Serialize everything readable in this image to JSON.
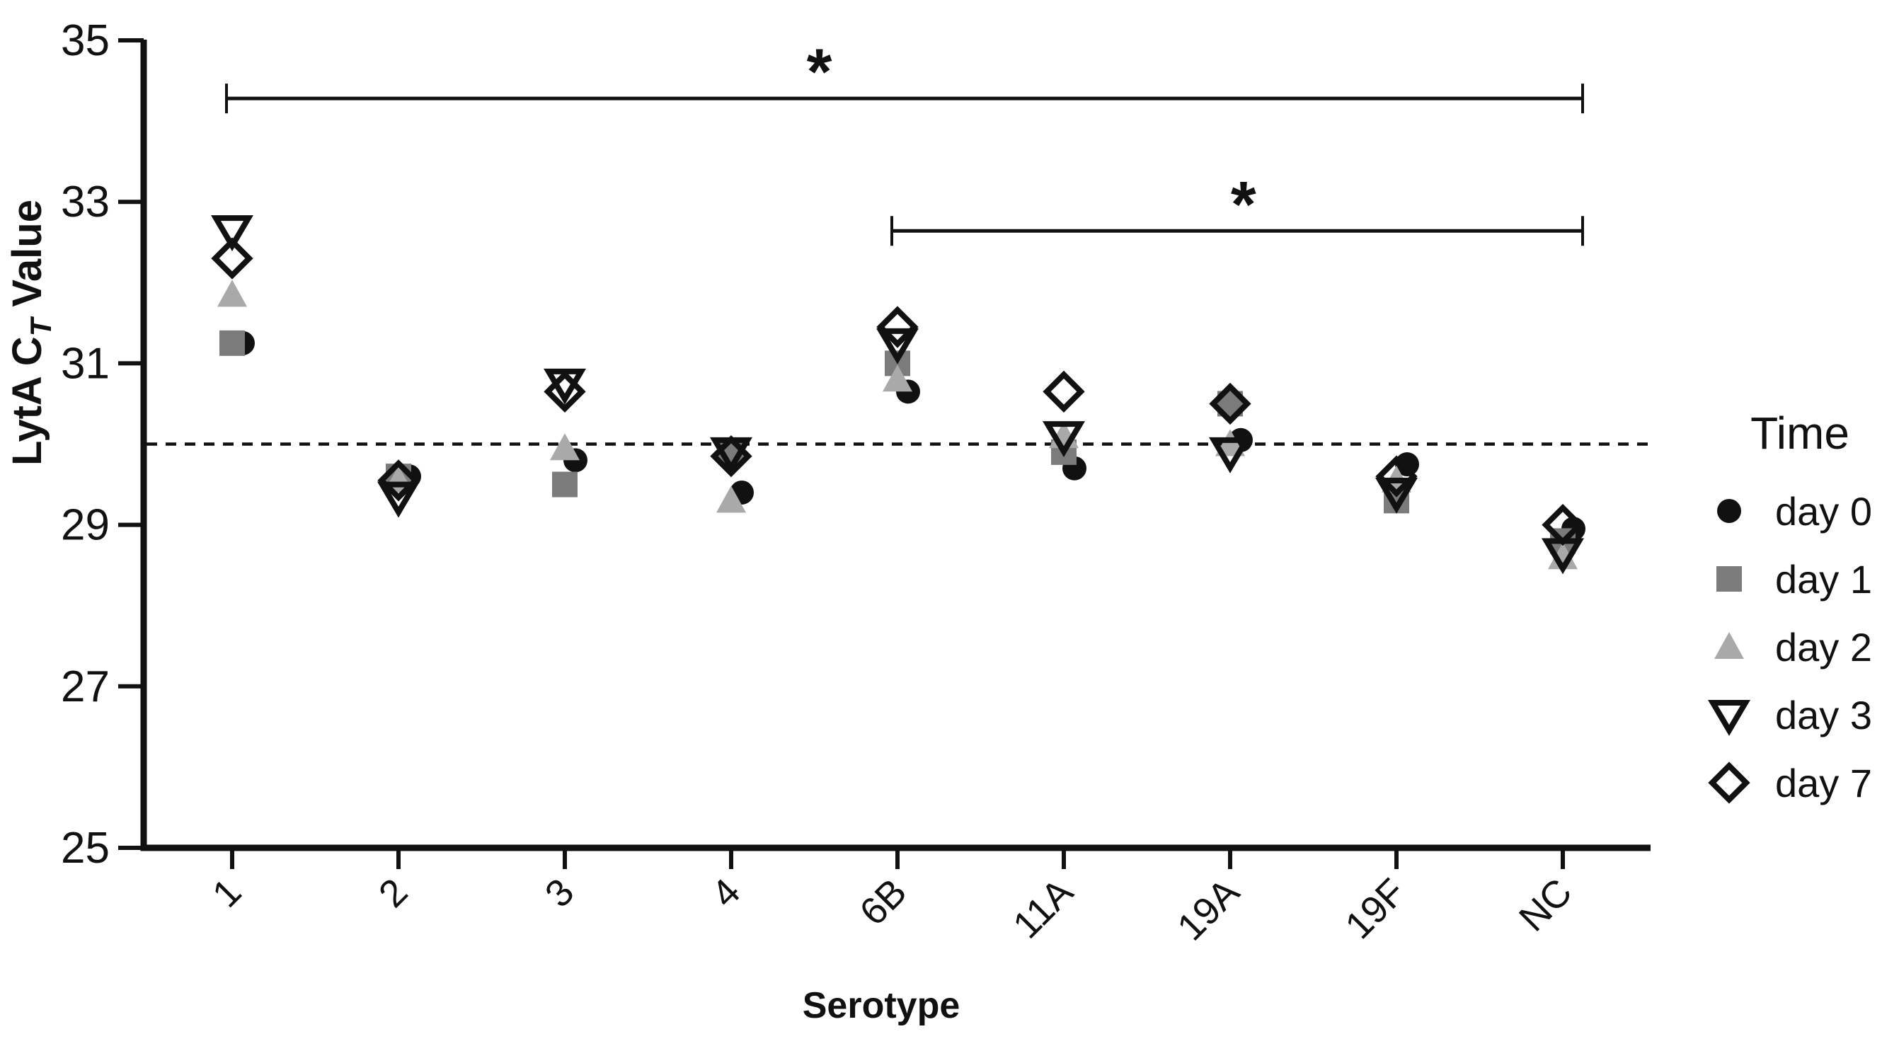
{
  "chart_data": {
    "type": "scatter",
    "title": "",
    "xlabel": "Serotype",
    "ylabel": "LytA CT Value",
    "ylabel_parts": {
      "prefix": "LytA C",
      "sub": "T",
      "suffix": " Value"
    },
    "categories": [
      "1",
      "2",
      "3",
      "4",
      "6B",
      "11A",
      "19A",
      "19F",
      "NC"
    ],
    "yticks": [
      35,
      33,
      31,
      29,
      27,
      25
    ],
    "ylim": [
      25,
      35
    ],
    "grid": "off",
    "reference_line": {
      "y": 30,
      "style": "dashed",
      "color": "#111111"
    },
    "legend": {
      "title": "Time",
      "position": "right"
    },
    "series": [
      {
        "name": "day 0",
        "marker": "circle",
        "style": "filled",
        "color": "#111111",
        "values": [
          31.25,
          29.6,
          29.8,
          29.4,
          30.65,
          29.7,
          30.05,
          29.75,
          28.95
        ]
      },
      {
        "name": "day 1",
        "marker": "square",
        "style": "filled",
        "color": "#7b7b7b",
        "values": [
          31.25,
          29.6,
          29.5,
          29.9,
          31.0,
          29.9,
          30.5,
          29.3,
          28.8
        ]
      },
      {
        "name": "day 2",
        "marker": "triangle-up",
        "style": "filled",
        "color": "#a9a9a9",
        "values": [
          31.85,
          29.55,
          29.95,
          29.3,
          30.8,
          30.1,
          30.0,
          29.55,
          28.6
        ]
      },
      {
        "name": "day 3",
        "marker": "triangle-down",
        "style": "open",
        "color": "#111111",
        "values": [
          32.65,
          29.35,
          30.75,
          29.9,
          31.25,
          30.1,
          29.9,
          29.4,
          28.65
        ]
      },
      {
        "name": "day 7",
        "marker": "diamond",
        "style": "open",
        "color": "#111111",
        "values": [
          32.3,
          29.55,
          30.65,
          29.85,
          31.45,
          30.65,
          30.5,
          29.6,
          29.0
        ]
      }
    ],
    "significance_bars": [
      {
        "from": "1",
        "to": "NC",
        "label": "*",
        "y": 34.28
      },
      {
        "from": "6B",
        "to": "NC",
        "label": "*",
        "y": 32.64
      }
    ]
  }
}
